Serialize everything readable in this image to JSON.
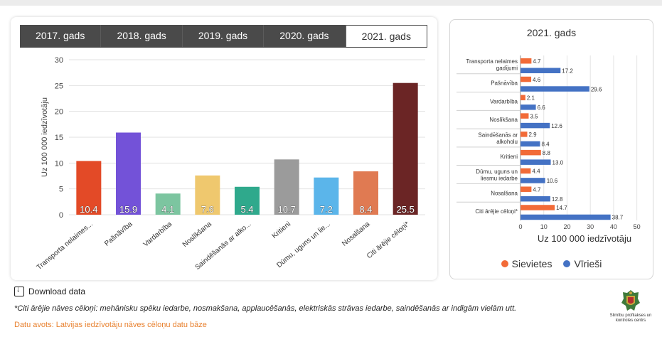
{
  "tabs": [
    {
      "label": "2017. gads",
      "active": false
    },
    {
      "label": "2018. gads",
      "active": false
    },
    {
      "label": "2019. gads",
      "active": false
    },
    {
      "label": "2020. gads",
      "active": false
    },
    {
      "label": "2021. gads",
      "active": true
    }
  ],
  "download_label": "Download data",
  "footnote": "*Citi ārējie nāves cēloņi: mehānisku spēku iedarbe, nosmakšana, applaucēšanās, elektriskās strāvas iedarbe, saindēšanās ar indīgām vielām utt.",
  "source": "Datu avots: Latvijas iedzīvotāju nāves cēloņu datu bāze",
  "logo_text": "Slimību profilakses un kontroles centrs",
  "colors": {
    "female": "#f26b38",
    "male": "#4472c4",
    "tab_dark": "#4a4a4a",
    "source": "#e8812f"
  },
  "chart_data": [
    {
      "type": "bar",
      "title": "",
      "xlabel": "",
      "ylabel": "Uz 100 000 iedzīvotāju",
      "ylim": [
        0,
        30
      ],
      "yticks": [
        0,
        5,
        10,
        15,
        20,
        25,
        30
      ],
      "grid": true,
      "categories": [
        "Transporta nelaimes...",
        "Pašnāvība",
        "Vardarbība",
        "Noslīkšana",
        "Saindēšanās ar alko...",
        "Kritieni",
        "Dūmu, uguns un lie...",
        "Nosalšana",
        "Citi ārējie cēloņi*"
      ],
      "values": [
        10.4,
        15.9,
        4.1,
        7.6,
        5.4,
        10.7,
        7.2,
        8.4,
        25.5
      ],
      "labels": [
        "10.4",
        "15.9",
        "4.1",
        "7.6",
        "5.4",
        "10.7",
        "7.2",
        "8.4",
        "25.5"
      ],
      "bar_colors": [
        "#e34a27",
        "#7352d8",
        "#7cc5a0",
        "#efc86e",
        "#2fa98c",
        "#9b9b9b",
        "#5bb5ea",
        "#e07a52",
        "#6b2525"
      ]
    },
    {
      "type": "bar",
      "orientation": "horizontal",
      "title": "2021. gads",
      "xlabel": "Uz 100 000 iedzīvotāju",
      "ylabel": "",
      "xlim": [
        0,
        55
      ],
      "xticks": [
        0,
        10,
        20,
        30,
        40,
        50
      ],
      "grid": true,
      "legend_position": "bottom",
      "categories": [
        "Transporta nelaimes gadījumi",
        "Pašnāvība",
        "Vardarbība",
        "Noslīkšana",
        "Saindēšanās ar alkoholu",
        "Kritieni",
        "Dūmu, uguns un liesmu iedarbe",
        "Nosalšana",
        "Citi ārējie cēloņi*"
      ],
      "category_lines": [
        [
          "Transporta nelaimes",
          "gadījumi"
        ],
        [
          "Pašnāvība"
        ],
        [
          "Vardarbība"
        ],
        [
          "Noslīkšana"
        ],
        [
          "Saindēšanās ar",
          "alkoholu"
        ],
        [
          "Kritieni"
        ],
        [
          "Dūmu, uguns un",
          "liesmu iedarbe"
        ],
        [
          "Nosalšana"
        ],
        [
          "Citi ārējie cēloņi*"
        ]
      ],
      "series": [
        {
          "name": "Sievietes",
          "color": "#f26b38",
          "values": [
            4.7,
            4.6,
            2.1,
            3.5,
            2.9,
            8.8,
            4.4,
            4.7,
            14.7
          ],
          "labels": [
            "4.7",
            "4.6",
            "2.1",
            "3.5",
            "2.9",
            "8.8",
            "4.4",
            "4.7",
            "14.7"
          ]
        },
        {
          "name": "Vīrieši",
          "color": "#4472c4",
          "values": [
            17.2,
            29.6,
            6.6,
            12.6,
            8.4,
            13.0,
            10.6,
            12.8,
            38.7
          ],
          "labels": [
            "17.2",
            "29.6",
            "6.6",
            "12.6",
            "8.4",
            "13.0",
            "10.6",
            "12.8",
            "38.7"
          ]
        }
      ]
    }
  ]
}
